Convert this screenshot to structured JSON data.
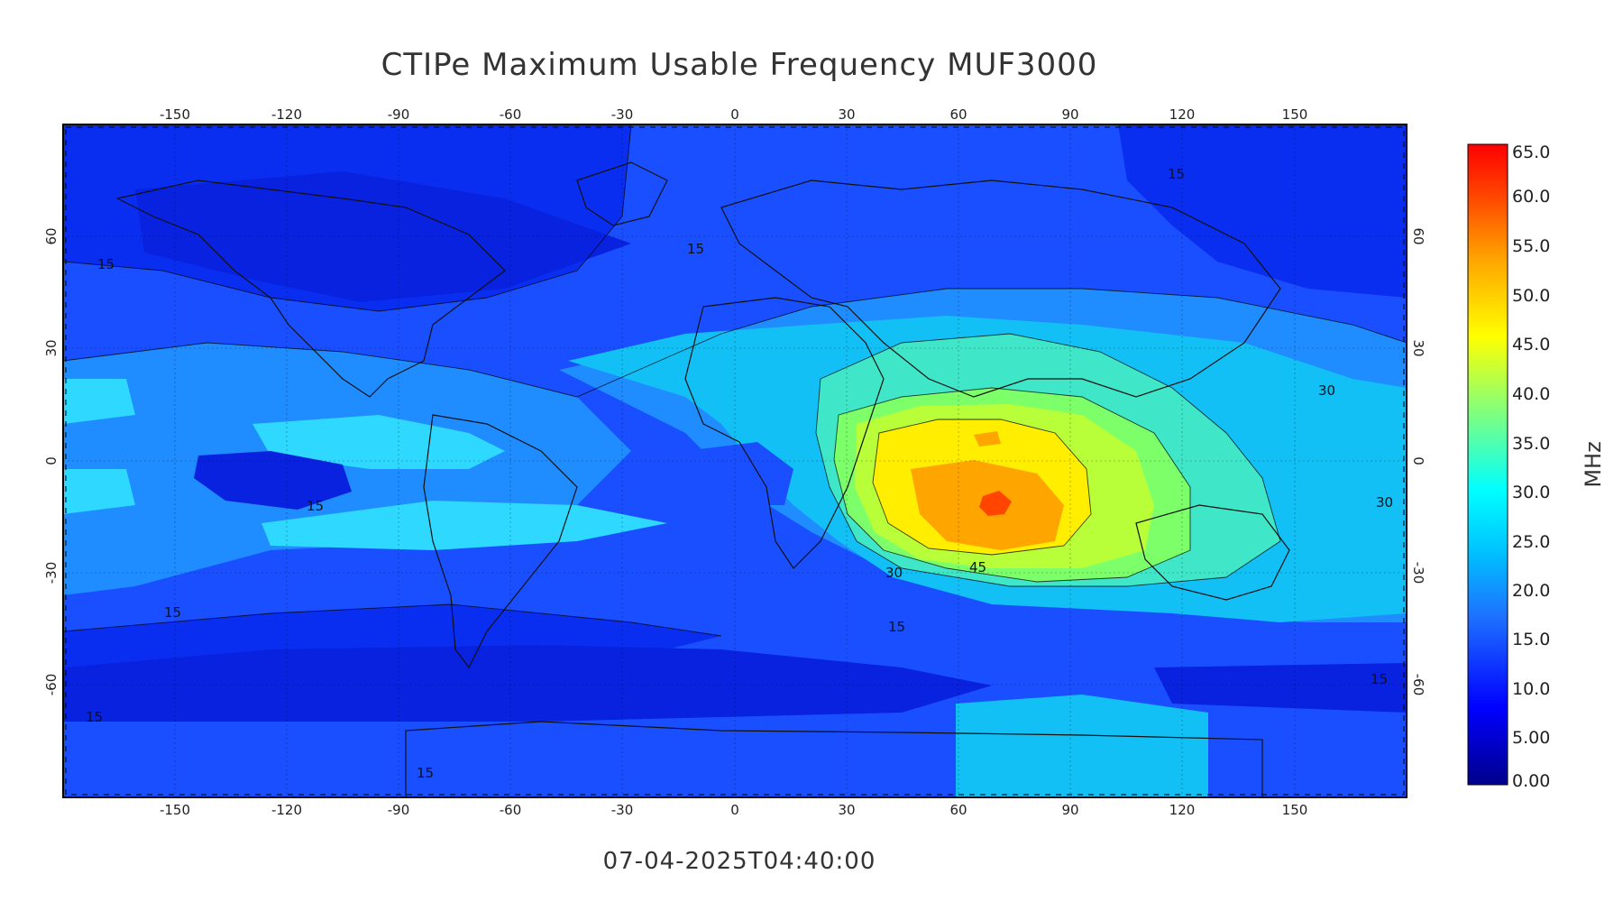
{
  "title": "CTIPe Maximum Usable Frequency MUF3000",
  "timestamp": "07-04-2025T04:40:00",
  "map": {
    "lon_ticks": [
      "-150",
      "-120",
      "-90",
      "-60",
      "-30",
      "0",
      "30",
      "60",
      "90",
      "120",
      "150"
    ],
    "lat_ticks": [
      "60",
      "30",
      "0",
      "-30",
      "-60"
    ],
    "contour_labels": [
      "15",
      "15",
      "15",
      "15",
      "15",
      "15",
      "15",
      "15",
      "15",
      "30",
      "30",
      "30",
      "45"
    ]
  },
  "colorbar": {
    "unit": "MHz",
    "labels": [
      "65.0",
      "60.0",
      "55.0",
      "50.0",
      "45.0",
      "40.0",
      "35.0",
      "30.0",
      "25.0",
      "20.0",
      "15.0",
      "10.0",
      "5.00",
      "0.00"
    ],
    "colors": {
      "c0": "#00008b",
      "c1": "#0000ff",
      "c2": "#1e6fff",
      "c3": "#00bfff",
      "c4": "#40e0d0",
      "c5": "#00ffff",
      "c6": "#7fff00",
      "c7": "#ffff00",
      "c8": "#ffa500",
      "c9": "#ff4500",
      "c10": "#ff0000"
    }
  }
}
